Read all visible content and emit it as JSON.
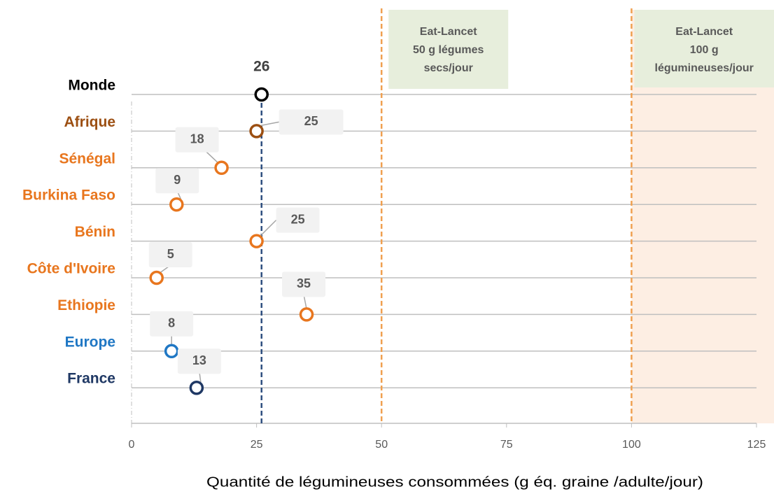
{
  "chart_data": {
    "type": "dot",
    "categories": [
      "Monde",
      "Afrique",
      "Sénégal",
      "Burkina Faso",
      "Bénin",
      "Côte d'Ivoire",
      "Ethiopie",
      "Europe",
      "France"
    ],
    "values": [
      26,
      25,
      18,
      9,
      25,
      5,
      35,
      8,
      13
    ],
    "colors": [
      "#000000",
      "#9c4f12",
      "#e8761e",
      "#e8761e",
      "#e8761e",
      "#e8761e",
      "#e8761e",
      "#1f77c4",
      "#1f3864"
    ],
    "xlabel": "Quantité de légumineuses consommées (g éq. graine /adulte/jour)",
    "xlim": [
      0,
      125
    ],
    "xticks": [
      0,
      25,
      50,
      75,
      100,
      125
    ],
    "grid": true,
    "reference_lines": [
      {
        "x": 26,
        "color": "#2f4f7f"
      },
      {
        "x": 50,
        "color": "#f0a050"
      },
      {
        "x": 100,
        "color": "#f0a050"
      }
    ],
    "shade_from": 100,
    "annotations": [
      {
        "lines": [
          "Eat-Lancet",
          "50 g légumes",
          "secs/jour"
        ]
      },
      {
        "lines": [
          "Eat-Lancet",
          "100 g",
          "légumineuses/jour"
        ]
      }
    ]
  }
}
